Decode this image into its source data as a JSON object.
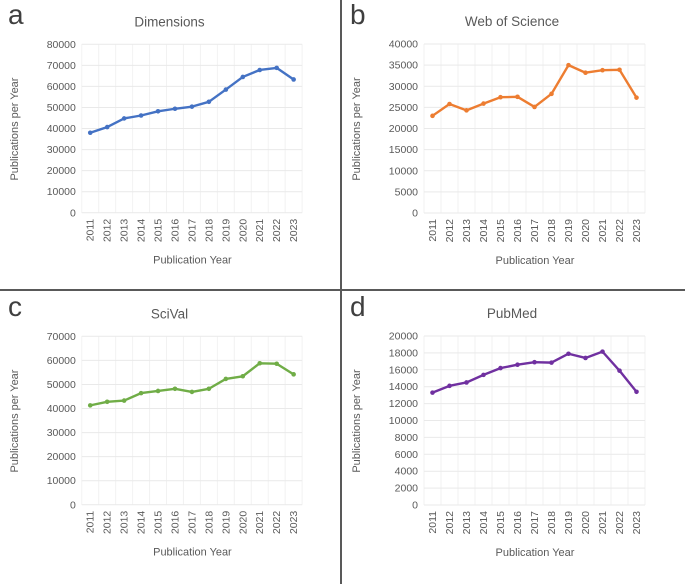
{
  "figure": {
    "description": "Four-panel line chart figure comparing publications per year across bibliographic databases, 2011-2023",
    "grid_color": "#595959"
  },
  "chart_data": [
    {
      "type": "line",
      "panel_label": "a",
      "title": "Dimensions",
      "xlabel": "Publication Year",
      "ylabel": "Publications per Year",
      "categories": [
        "2011",
        "2012",
        "2013",
        "2014",
        "2015",
        "2016",
        "2017",
        "2018",
        "2019",
        "2020",
        "2021",
        "2022",
        "2023"
      ],
      "values": [
        38000,
        40700,
        44800,
        46200,
        48200,
        49400,
        50400,
        52700,
        58500,
        64500,
        67800,
        68800,
        63300
      ],
      "ylim": [
        0,
        80000
      ],
      "ytick_step": 10000,
      "color": "#4472C4",
      "grid": true,
      "legend": "none"
    },
    {
      "type": "line",
      "panel_label": "b",
      "title": "Web of Science",
      "xlabel": "Publication Year",
      "ylabel": "Publications per Year",
      "categories": [
        "2011",
        "2012",
        "2013",
        "2014",
        "2015",
        "2016",
        "2017",
        "2018",
        "2019",
        "2020",
        "2021",
        "2022",
        "2023"
      ],
      "values": [
        23000,
        25800,
        24300,
        25900,
        27400,
        27500,
        25100,
        28200,
        35000,
        33200,
        33800,
        33900,
        27300
      ],
      "ylim": [
        0,
        40000
      ],
      "ytick_step": 5000,
      "color": "#ED7D31",
      "grid": true,
      "legend": "none"
    },
    {
      "type": "line",
      "panel_label": "c",
      "title": "SciVal",
      "xlabel": "Publication Year",
      "ylabel": "Publications per Year",
      "categories": [
        "2011",
        "2012",
        "2013",
        "2014",
        "2015",
        "2016",
        "2017",
        "2018",
        "2019",
        "2020",
        "2021",
        "2022",
        "2023"
      ],
      "values": [
        41300,
        42800,
        43300,
        46400,
        47300,
        48200,
        46900,
        48200,
        52300,
        53400,
        58800,
        58600,
        54200
      ],
      "ylim": [
        0,
        70000
      ],
      "ytick_step": 10000,
      "color": "#70AD47",
      "grid": true,
      "legend": "none"
    },
    {
      "type": "line",
      "panel_label": "d",
      "title": "PubMed",
      "xlabel": "Publication Year",
      "ylabel": "Publications per Year",
      "categories": [
        "2011",
        "2012",
        "2013",
        "2014",
        "2015",
        "2016",
        "2017",
        "2018",
        "2019",
        "2020",
        "2021",
        "2022",
        "2023"
      ],
      "values": [
        13300,
        14100,
        14500,
        15400,
        16200,
        16600,
        16900,
        16850,
        17900,
        17400,
        18150,
        15900,
        13400
      ],
      "ylim": [
        0,
        20000
      ],
      "ytick_step": 2000,
      "color": "#7030A0",
      "grid": true,
      "legend": "none"
    }
  ]
}
